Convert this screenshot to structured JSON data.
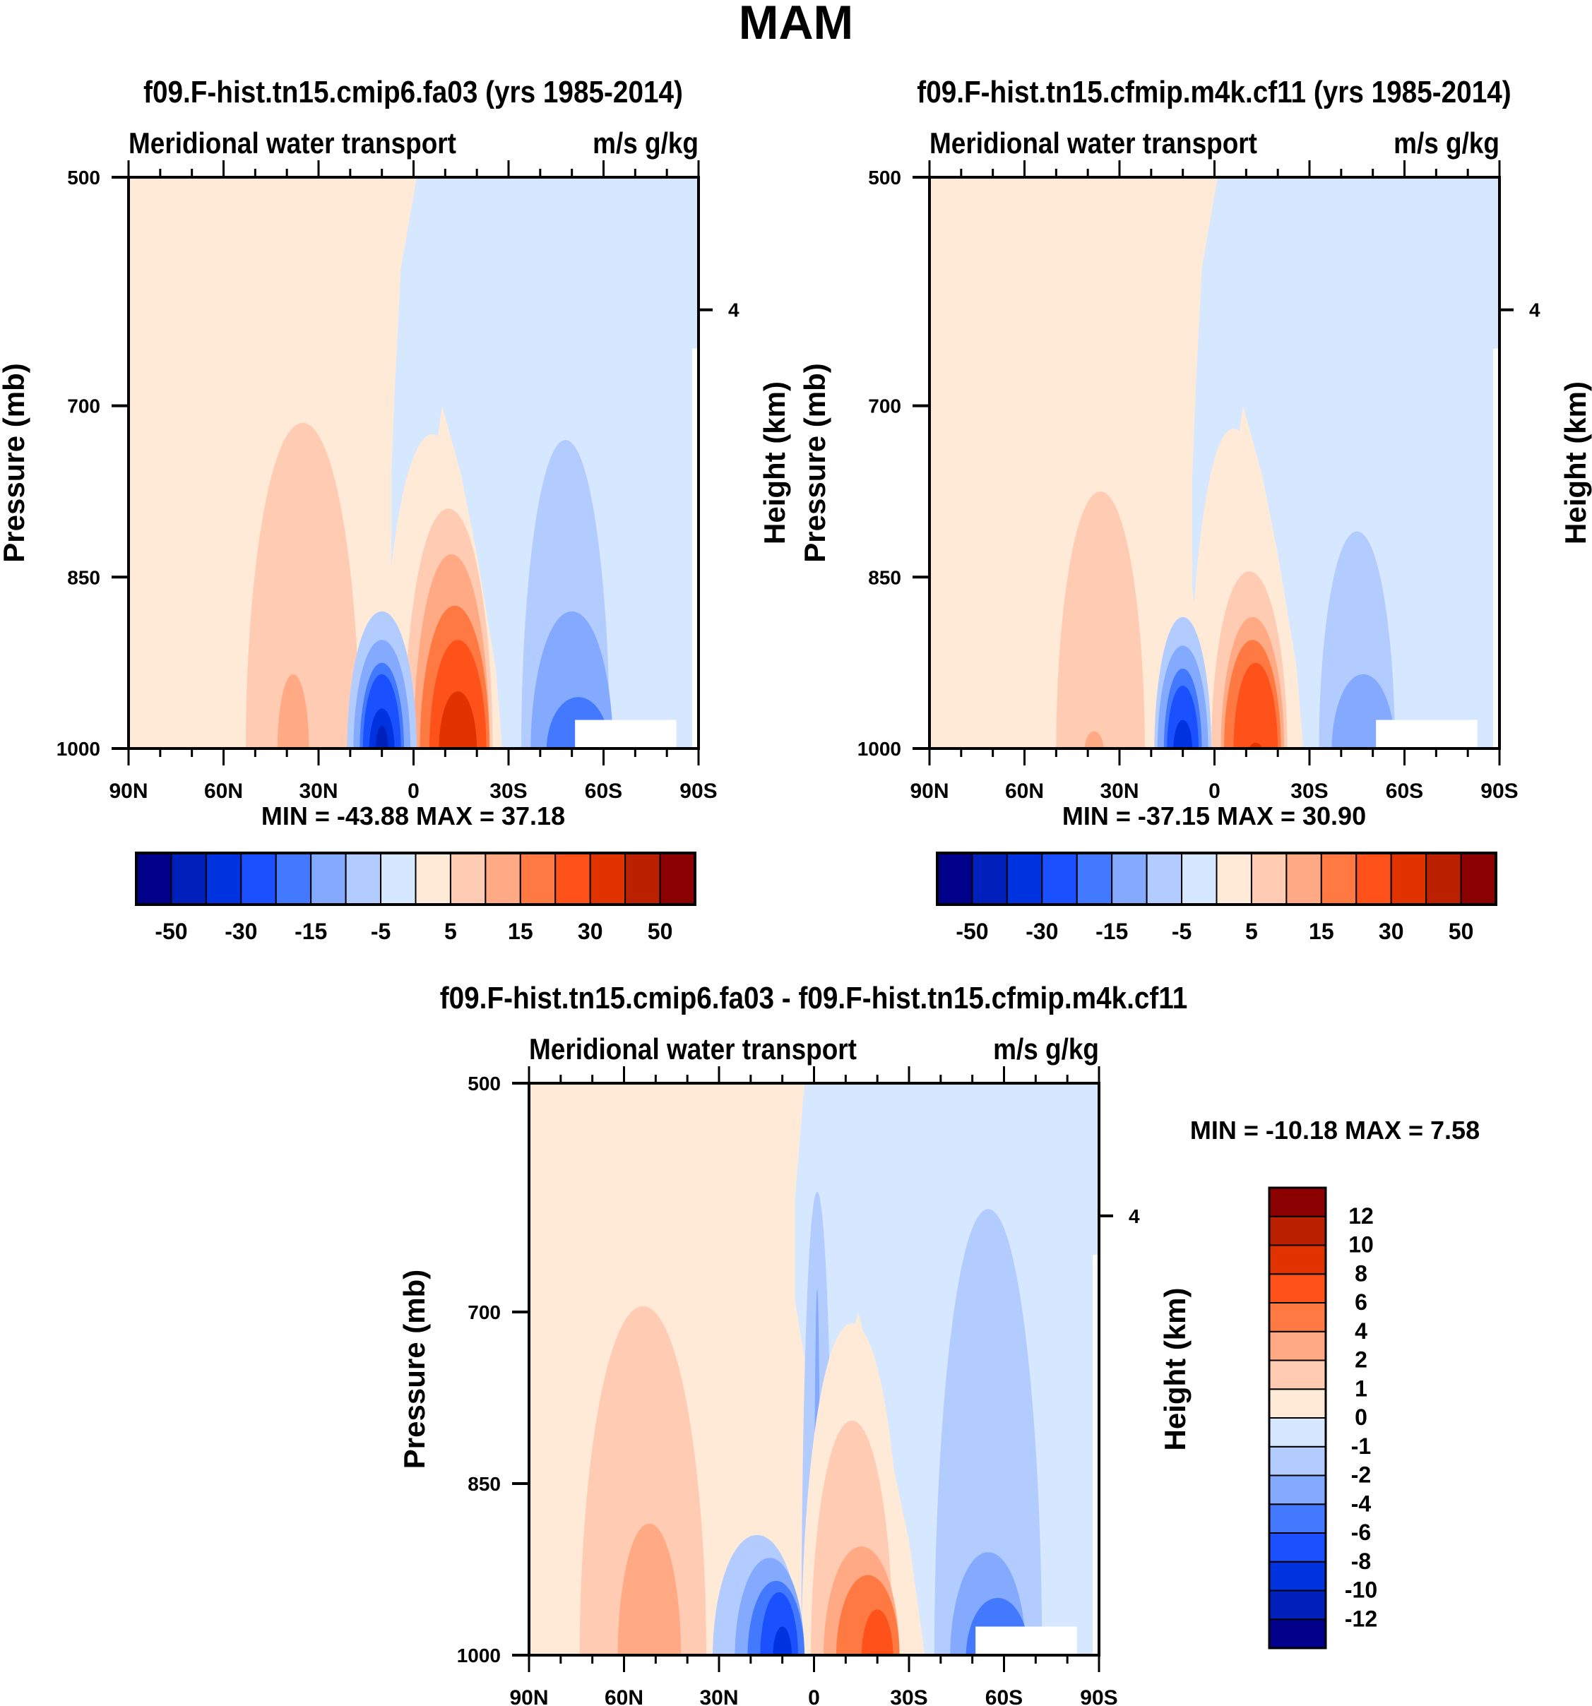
{
  "figure": {
    "title": "MAM"
  },
  "chart_data": [
    {
      "id": "panel1",
      "type": "heatmap",
      "subtype": "filled-contour",
      "title": "f09.F-hist.tn15.cmip6.fa03 (yrs 1985-2014)",
      "left_string": "Meridional water transport",
      "right_string": "m/s g/kg",
      "xlabel": "",
      "ylabel": "Pressure (mb)",
      "y2label": "Height (km)",
      "x_ticks": [
        "90N",
        "60N",
        "30N",
        "0",
        "30S",
        "60S",
        "90S"
      ],
      "x_range": [
        90,
        -90
      ],
      "y_ticks": [
        500,
        700,
        850,
        1000
      ],
      "y_range": [
        500,
        1000
      ],
      "y2_ticks": [
        {
          "label": "4",
          "pressure": 616
        }
      ],
      "min_label": "MIN = -43.88",
      "max_label": "MAX =  37.18",
      "min": -43.88,
      "max": 37.18,
      "colorbar": {
        "orientation": "horizontal",
        "levels": [
          -50,
          -40,
          -30,
          -20,
          -15,
          -10,
          -5,
          0,
          5,
          10,
          15,
          20,
          30,
          40,
          50
        ],
        "labels": [
          "-50",
          "-30",
          "-15",
          "-5",
          "5",
          "15",
          "30",
          "50"
        ],
        "label_every": 2
      },
      "features": [
        {
          "kind": "negative-core",
          "center_lat": 10,
          "surface_peak": -43.88
        },
        {
          "kind": "positive-core",
          "center_lat": -12,
          "surface_peak": 37.18
        },
        {
          "kind": "negative-lobe",
          "center_lat": -48,
          "peak_level": -15
        },
        {
          "kind": "positive-lobe",
          "center_lat": 35,
          "peak_level": 10
        }
      ]
    },
    {
      "id": "panel2",
      "type": "heatmap",
      "subtype": "filled-contour",
      "title": "f09.F-hist.tn15.cfmip.m4k.cf11 (yrs 1985-2014)",
      "left_string": "Meridional water transport",
      "right_string": "m/s g/kg",
      "xlabel": "",
      "ylabel": "Pressure (mb)",
      "y2label": "Height (km)",
      "x_ticks": [
        "90N",
        "60N",
        "30N",
        "0",
        "30S",
        "60S",
        "90S"
      ],
      "x_range": [
        90,
        -90
      ],
      "y_ticks": [
        500,
        700,
        850,
        1000
      ],
      "y_range": [
        500,
        1000
      ],
      "y2_ticks": [
        {
          "label": "4",
          "pressure": 616
        }
      ],
      "min_label": "MIN = -37.15",
      "max_label": "MAX =  30.90",
      "min": -37.15,
      "max": 30.9,
      "colorbar": {
        "orientation": "horizontal",
        "levels": [
          -50,
          -40,
          -30,
          -20,
          -15,
          -10,
          -5,
          0,
          5,
          10,
          15,
          20,
          30,
          40,
          50
        ],
        "labels": [
          "-50",
          "-30",
          "-15",
          "-5",
          "5",
          "15",
          "30",
          "50"
        ],
        "label_every": 2
      },
      "features": [
        {
          "kind": "negative-core",
          "center_lat": 10,
          "surface_peak": -37.15
        },
        {
          "kind": "positive-core",
          "center_lat": -12,
          "surface_peak": 30.9
        },
        {
          "kind": "negative-lobe",
          "center_lat": -45,
          "peak_level": -10
        },
        {
          "kind": "positive-lobe",
          "center_lat": 35,
          "peak_level": 5
        }
      ]
    },
    {
      "id": "panel3",
      "type": "heatmap",
      "subtype": "filled-contour",
      "title": "f09.F-hist.tn15.cmip6.fa03 - f09.F-hist.tn15.cfmip.m4k.cf11",
      "left_string": "Meridional water transport",
      "right_string": "m/s g/kg",
      "xlabel": "",
      "ylabel": "Pressure (mb)",
      "y2label": "Height (km)",
      "x_ticks": [
        "90N",
        "60N",
        "30N",
        "0",
        "30S",
        "60S",
        "90S"
      ],
      "x_range": [
        90,
        -90
      ],
      "y_ticks": [
        500,
        700,
        850,
        1000
      ],
      "y_range": [
        500,
        1000
      ],
      "y2_ticks": [
        {
          "label": "4",
          "pressure": 616
        }
      ],
      "min_label": "MIN = -10.18",
      "max_label": "MAX =   7.58",
      "min": -10.18,
      "max": 7.58,
      "colorbar": {
        "orientation": "vertical",
        "levels": [
          -12,
          -10,
          -8,
          -6,
          -4,
          -2,
          -1,
          0,
          1,
          2,
          4,
          6,
          8,
          10,
          12
        ],
        "labels": [
          "-12",
          "-10",
          "-8",
          "-6",
          "-4",
          "-2",
          "-1",
          "0",
          "1",
          "2",
          "4",
          "6",
          "8",
          "10",
          "12"
        ],
        "label_every": 1
      },
      "features": [
        {
          "kind": "negative-core",
          "center_lat": 10,
          "surface_peak": -10.18
        },
        {
          "kind": "positive-core",
          "center_lat": -15,
          "surface_peak": 7.58
        },
        {
          "kind": "negative-lobe",
          "center_lat": -55,
          "peak_level": -4
        },
        {
          "kind": "positive-lobe",
          "center_lat": 50,
          "peak_level": 2
        }
      ]
    }
  ],
  "colors": {
    "palette": [
      "#00008b",
      "#0020bb",
      "#0033e0",
      "#1a50ff",
      "#4279ff",
      "#84aaff",
      "#b3ccff",
      "#d6e8ff",
      "#ffead8",
      "#ffccb3",
      "#ffaa84",
      "#ff7a42",
      "#ff521a",
      "#e03300",
      "#bb2000",
      "#8b0000"
    ],
    "missing": "#ffffff",
    "frame": "#000000"
  }
}
